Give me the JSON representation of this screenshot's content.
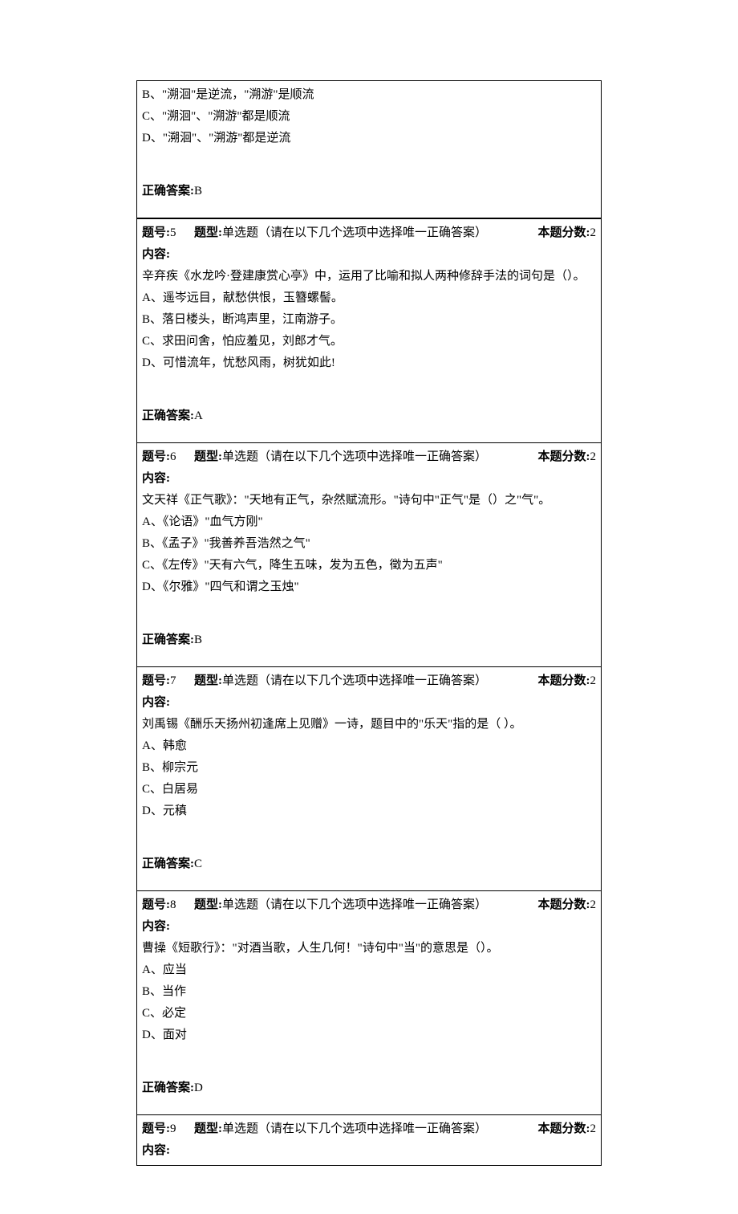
{
  "labels": {
    "question_number": "题号:",
    "question_type": "题型:",
    "score_label": "本题分数:",
    "content_label": "内容:",
    "answer_label": "正确答案:"
  },
  "partial_question": {
    "options": [
      "B、\"溯洄\"是逆流，\"溯游\"是顺流",
      "C、\"溯洄\"、\"溯游\"都是顺流",
      "D、\"溯洄\"、\"溯游\"都是逆流"
    ],
    "answer": "B"
  },
  "questions": [
    {
      "number": "5",
      "type": "单选题（请在以下几个选项中选择唯一正确答案）",
      "score": "2",
      "question": "辛弃疾《水龙吟·登建康赏心亭》中，运用了比喻和拟人两种修辞手法的词句是（）。",
      "options": [
        "A、遥岑远目，献愁供恨，玉簪螺髻。",
        "B、落日楼头，断鸿声里，江南游子。",
        "C、求田问舍，怕应羞见，刘郎才气。",
        "D、可惜流年，忧愁风雨，树犹如此!"
      ],
      "answer": "A"
    },
    {
      "number": "6",
      "type": "单选题（请在以下几个选项中选择唯一正确答案）",
      "score": "2",
      "question": "文天祥《正气歌》：\"天地有正气，杂然赋流形。\"诗句中\"正气\"是（）之\"气\"。",
      "options": [
        "A、《论语》\"血气方刚\"",
        "B、《孟子》\"我善养吾浩然之气\"",
        "C、《左传》\"天有六气，降生五味，发为五色，徵为五声\"",
        "D、《尔雅》\"四气和谓之玉烛\""
      ],
      "answer": "B"
    },
    {
      "number": "7",
      "type": "单选题（请在以下几个选项中选择唯一正确答案）",
      "score": "2",
      "question": "刘禹锡《酬乐天扬州初逢席上见赠》一诗，题目中的\"乐天\"指的是（ ）。",
      "options": [
        "A、韩愈",
        "B、柳宗元",
        "C、白居易",
        "D、元稹"
      ],
      "answer": "C"
    },
    {
      "number": "8",
      "type": "单选题（请在以下几个选项中选择唯一正确答案）",
      "score": "2",
      "question": "曹操《短歌行》：\"对酒当歌，人生几何！\"诗句中\"当\"的意思是（）。",
      "options": [
        "A、应当",
        "B、当作",
        "C、必定",
        "D、面对"
      ],
      "answer": "D"
    },
    {
      "number": "9",
      "type": "单选题（请在以下几个选项中选择唯一正确答案）",
      "score": "2",
      "question": "",
      "options": [],
      "answer": ""
    }
  ]
}
